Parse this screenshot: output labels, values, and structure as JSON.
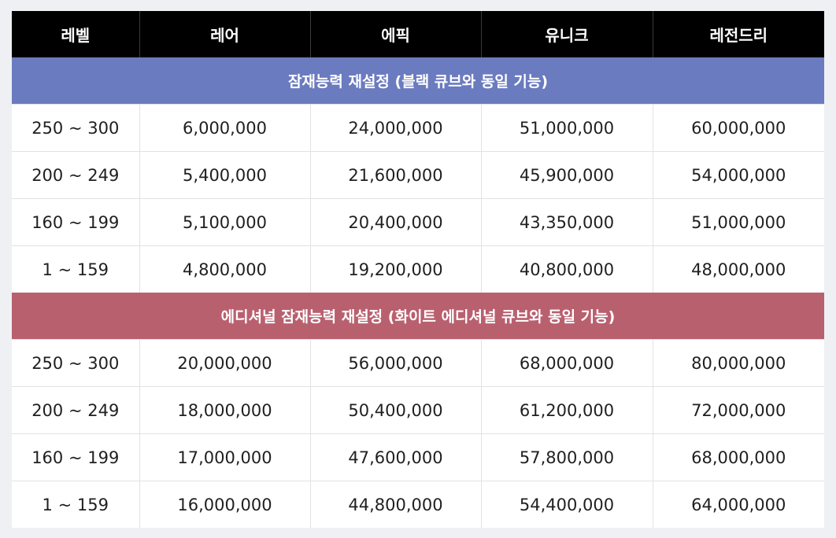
{
  "table": {
    "headers": [
      "레벨",
      "레어",
      "에픽",
      "유니크",
      "레전드리"
    ],
    "sections": [
      {
        "title": "잠재능력 재설정 (블랙 큐브와 동일 기능)",
        "color": "#6b7bbf",
        "rows": [
          [
            "250 ~ 300",
            "6,000,000",
            "24,000,000",
            "51,000,000",
            "60,000,000"
          ],
          [
            "200 ~ 249",
            "5,400,000",
            "21,600,000",
            "45,900,000",
            "54,000,000"
          ],
          [
            "160 ~ 199",
            "5,100,000",
            "20,400,000",
            "43,350,000",
            "51,000,000"
          ],
          [
            "1 ~ 159",
            "4,800,000",
            "19,200,000",
            "40,800,000",
            "48,000,000"
          ]
        ]
      },
      {
        "title": "에디셔널 잠재능력 재설정 (화이트 에디셔널 큐브와 동일 기능)",
        "color": "#b9606f",
        "rows": [
          [
            "250 ~ 300",
            "20,000,000",
            "56,000,000",
            "68,000,000",
            "80,000,000"
          ],
          [
            "200 ~ 249",
            "18,000,000",
            "50,400,000",
            "61,200,000",
            "72,000,000"
          ],
          [
            "160 ~ 199",
            "17,000,000",
            "47,600,000",
            "57,800,000",
            "68,000,000"
          ],
          [
            "1 ~ 159",
            "16,000,000",
            "44,800,000",
            "54,400,000",
            "64,000,000"
          ]
        ]
      }
    ]
  }
}
